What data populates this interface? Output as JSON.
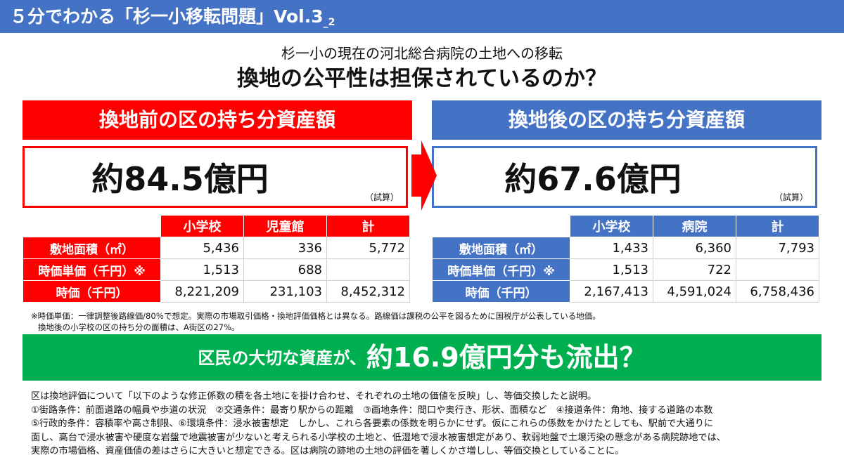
{
  "header": {
    "title": "５分でわかる「杉一小移転問題」Vol.3",
    "title_sub": "_2"
  },
  "subtitle": "杉一小の現在の河北総合病院の土地への移転",
  "headline": "換地の公平性は担保されているのか？",
  "before": {
    "heading": "換地前の区の持ち分資産額",
    "value": "約84.5億円",
    "note": "（試算）",
    "columns": [
      "小学校",
      "児童館",
      "計"
    ],
    "rows": [
      {
        "label": "敷地面積（㎡）",
        "cells": [
          "5,436",
          "336",
          "5,772"
        ]
      },
      {
        "label": "時価単価（千円）※",
        "cells": [
          "1,513",
          "688",
          ""
        ]
      },
      {
        "label": "時価（千円）",
        "cells": [
          "8,221,209",
          "231,103",
          "8,452,312"
        ]
      }
    ]
  },
  "after": {
    "heading": "換地後の区の持ち分資産額",
    "value": "約67.6億円",
    "note": "（試算）",
    "columns": [
      "小学校",
      "病院",
      "計"
    ],
    "rows": [
      {
        "label": "敷地面積（㎡）",
        "cells": [
          "1,433",
          "6,360",
          "7,793"
        ]
      },
      {
        "label": "時価単価（千円）※",
        "cells": [
          "1,513",
          "722",
          ""
        ]
      },
      {
        "label": "時価（千円）",
        "cells": [
          "2,167,413",
          "4,591,024",
          "6,758,436"
        ]
      }
    ]
  },
  "footnotes": [
    "※時価単価：一律調整後路線価/80％で想定。実際の市場取引価格・換地評価価格とは異なる。路線価は課税の公平を図るために国税庁が公表している地価。",
    "換地後の小学校の区の持ち分の面積は、A街区の27%。"
  ],
  "banner": {
    "lead": "区民の大切な資産が、",
    "main": "約16.9億円分も流出？"
  },
  "body_lines": [
    "区は換地評価について「以下のような修正係数の積を各土地にを掛け合わせ、それぞれの土地の価値を反映」し、等価交換したと説明。",
    "①街路条件：前面道路の幅員や歩道の状況　②交通条件：最寄り駅からの距離　③画地条件：間口や奥行き、形状、面積など　④接道条件：角地、接する道路の本数",
    "⑤行政的条件：容積率や高さ制限、⑥環境条件：浸水被害想定　しかし、これら各要素の係数を明らかにせず。仮にこれらの係数をかけたとしても、駅前で大通りに",
    "面し、高台で浸水被害や硬度な岩盤で地震被害が少ないと考えられる小学校の土地と、低湿地で浸水被害想定があり、軟弱地盤で土壌汚染の懸念がある病院跡地では、",
    "実際の市場価格、資産価値の差はさらに大きいと想定できる。区は病院の跡地の土地の評価を著しくかさ増しし、等価交換としていることに。"
  ],
  "colors": {
    "red": "#ff0000",
    "blue": "#4472c4",
    "green": "#00b050"
  },
  "icons": {
    "arrow": "right-arrow-icon"
  }
}
